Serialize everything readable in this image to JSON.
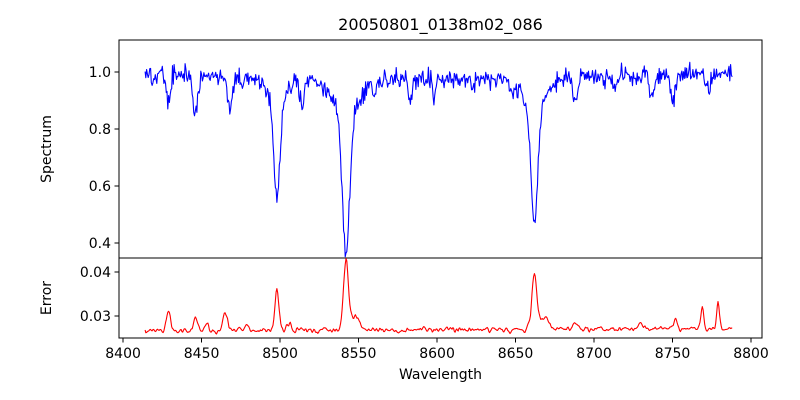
{
  "chart_data": {
    "type": "line",
    "title": "20050801_0138m02_086",
    "xlabel": "Wavelength",
    "xlim": [
      8397.4,
      8807.0
    ],
    "xticks": [
      8400,
      8450,
      8500,
      8550,
      8600,
      8650,
      8700,
      8750,
      8800
    ],
    "xtick_labels": [
      "8400",
      "8450",
      "8500",
      "8550",
      "8600",
      "8650",
      "8700",
      "8750",
      "8800"
    ],
    "background_color": "#ffffff",
    "axis_color": "#000000",
    "text_color": "#000000",
    "grid": false,
    "legend": false,
    "panels": [
      {
        "name": "spectrum",
        "ylabel": "Spectrum",
        "line_color": "#0000ff",
        "ylim": [
          0.347,
          1.112
        ],
        "yticks": [
          1.0,
          0.8,
          0.6,
          0.4
        ],
        "ytick_labels": [
          "1.0",
          "0.8",
          "0.6",
          "0.4"
        ],
        "x_start": 8414,
        "x_end": 8788,
        "x_step": 0.5,
        "seed": 20050801,
        "noise_sigma": 0.017,
        "continuum": {
          "base": 0.983,
          "wave_amp": 0.007
        },
        "absorption_lines": [
          {
            "center": 8429,
            "depth": 0.1,
            "sigma": 1.3
          },
          {
            "center": 8446,
            "depth": 0.145,
            "sigma": 1.5
          },
          {
            "center": 8468,
            "depth": 0.115,
            "sigma": 1.5
          },
          {
            "center": 8476,
            "depth": 0.06,
            "sigma": 1.1
          },
          {
            "center": 8498,
            "depth": 0.34,
            "sigma": 1.9
          },
          {
            "center": 8498,
            "depth": 0.095,
            "sigma": 6.5
          },
          {
            "center": 8514,
            "depth": 0.1,
            "sigma": 1.4
          },
          {
            "center": 8542,
            "depth": 0.47,
            "sigma": 2.3
          },
          {
            "center": 8542,
            "depth": 0.135,
            "sigma": 8.5
          },
          {
            "center": 8560,
            "depth": 0.05,
            "sigma": 1.1
          },
          {
            "center": 8583,
            "depth": 0.075,
            "sigma": 1.2
          },
          {
            "center": 8598,
            "depth": 0.055,
            "sigma": 1.1
          },
          {
            "center": 8623,
            "depth": 0.05,
            "sigma": 1.1
          },
          {
            "center": 8648,
            "depth": 0.05,
            "sigma": 1.0
          },
          {
            "center": 8662,
            "depth": 0.4,
            "sigma": 2.1
          },
          {
            "center": 8662,
            "depth": 0.115,
            "sigma": 7.0
          },
          {
            "center": 8688,
            "depth": 0.095,
            "sigma": 1.5
          },
          {
            "center": 8713,
            "depth": 0.05,
            "sigma": 1.2
          },
          {
            "center": 8737,
            "depth": 0.075,
            "sigma": 1.3
          },
          {
            "center": 8750,
            "depth": 0.09,
            "sigma": 1.3
          },
          {
            "center": 8773,
            "depth": 0.06,
            "sigma": 1.2
          }
        ]
      },
      {
        "name": "error",
        "ylabel": "Error",
        "line_color": "#ff0000",
        "ylim": [
          0.025,
          0.0432
        ],
        "yticks": [
          0.04,
          0.03
        ],
        "ytick_labels": [
          "0.04",
          "0.03"
        ],
        "x_start": 8414,
        "x_end": 8788,
        "x_step": 0.5,
        "seed": 138,
        "noise_sigma": 0.00042,
        "baseline": {
          "base": 0.0266,
          "tilt_per_angstrom": 1.5e-06
        },
        "peaks": [
          {
            "center": 8429,
            "amp": 0.0047,
            "sigma": 1.3
          },
          {
            "center": 8446,
            "amp": 0.0035,
            "sigma": 1.2
          },
          {
            "center": 8453,
            "amp": 0.0018,
            "sigma": 1.0
          },
          {
            "center": 8465,
            "amp": 0.0042,
            "sigma": 1.5
          },
          {
            "center": 8479,
            "amp": 0.0016,
            "sigma": 1.0
          },
          {
            "center": 8498,
            "amp": 0.0093,
            "sigma": 1.3
          },
          {
            "center": 8506,
            "amp": 0.0018,
            "sigma": 1.2
          },
          {
            "center": 8542,
            "amp": 0.0156,
            "sigma": 1.6
          },
          {
            "center": 8548,
            "amp": 0.003,
            "sigma": 2.5
          },
          {
            "center": 8662,
            "amp": 0.0126,
            "sigma": 1.6
          },
          {
            "center": 8668,
            "amp": 0.0028,
            "sigma": 2.5
          },
          {
            "center": 8688,
            "amp": 0.0016,
            "sigma": 1.4
          },
          {
            "center": 8730,
            "amp": 0.0015,
            "sigma": 1.2
          },
          {
            "center": 8752,
            "amp": 0.0022,
            "sigma": 1.0
          },
          {
            "center": 8769,
            "amp": 0.005,
            "sigma": 0.9
          },
          {
            "center": 8779,
            "amp": 0.0062,
            "sigma": 0.9
          }
        ]
      }
    ]
  }
}
